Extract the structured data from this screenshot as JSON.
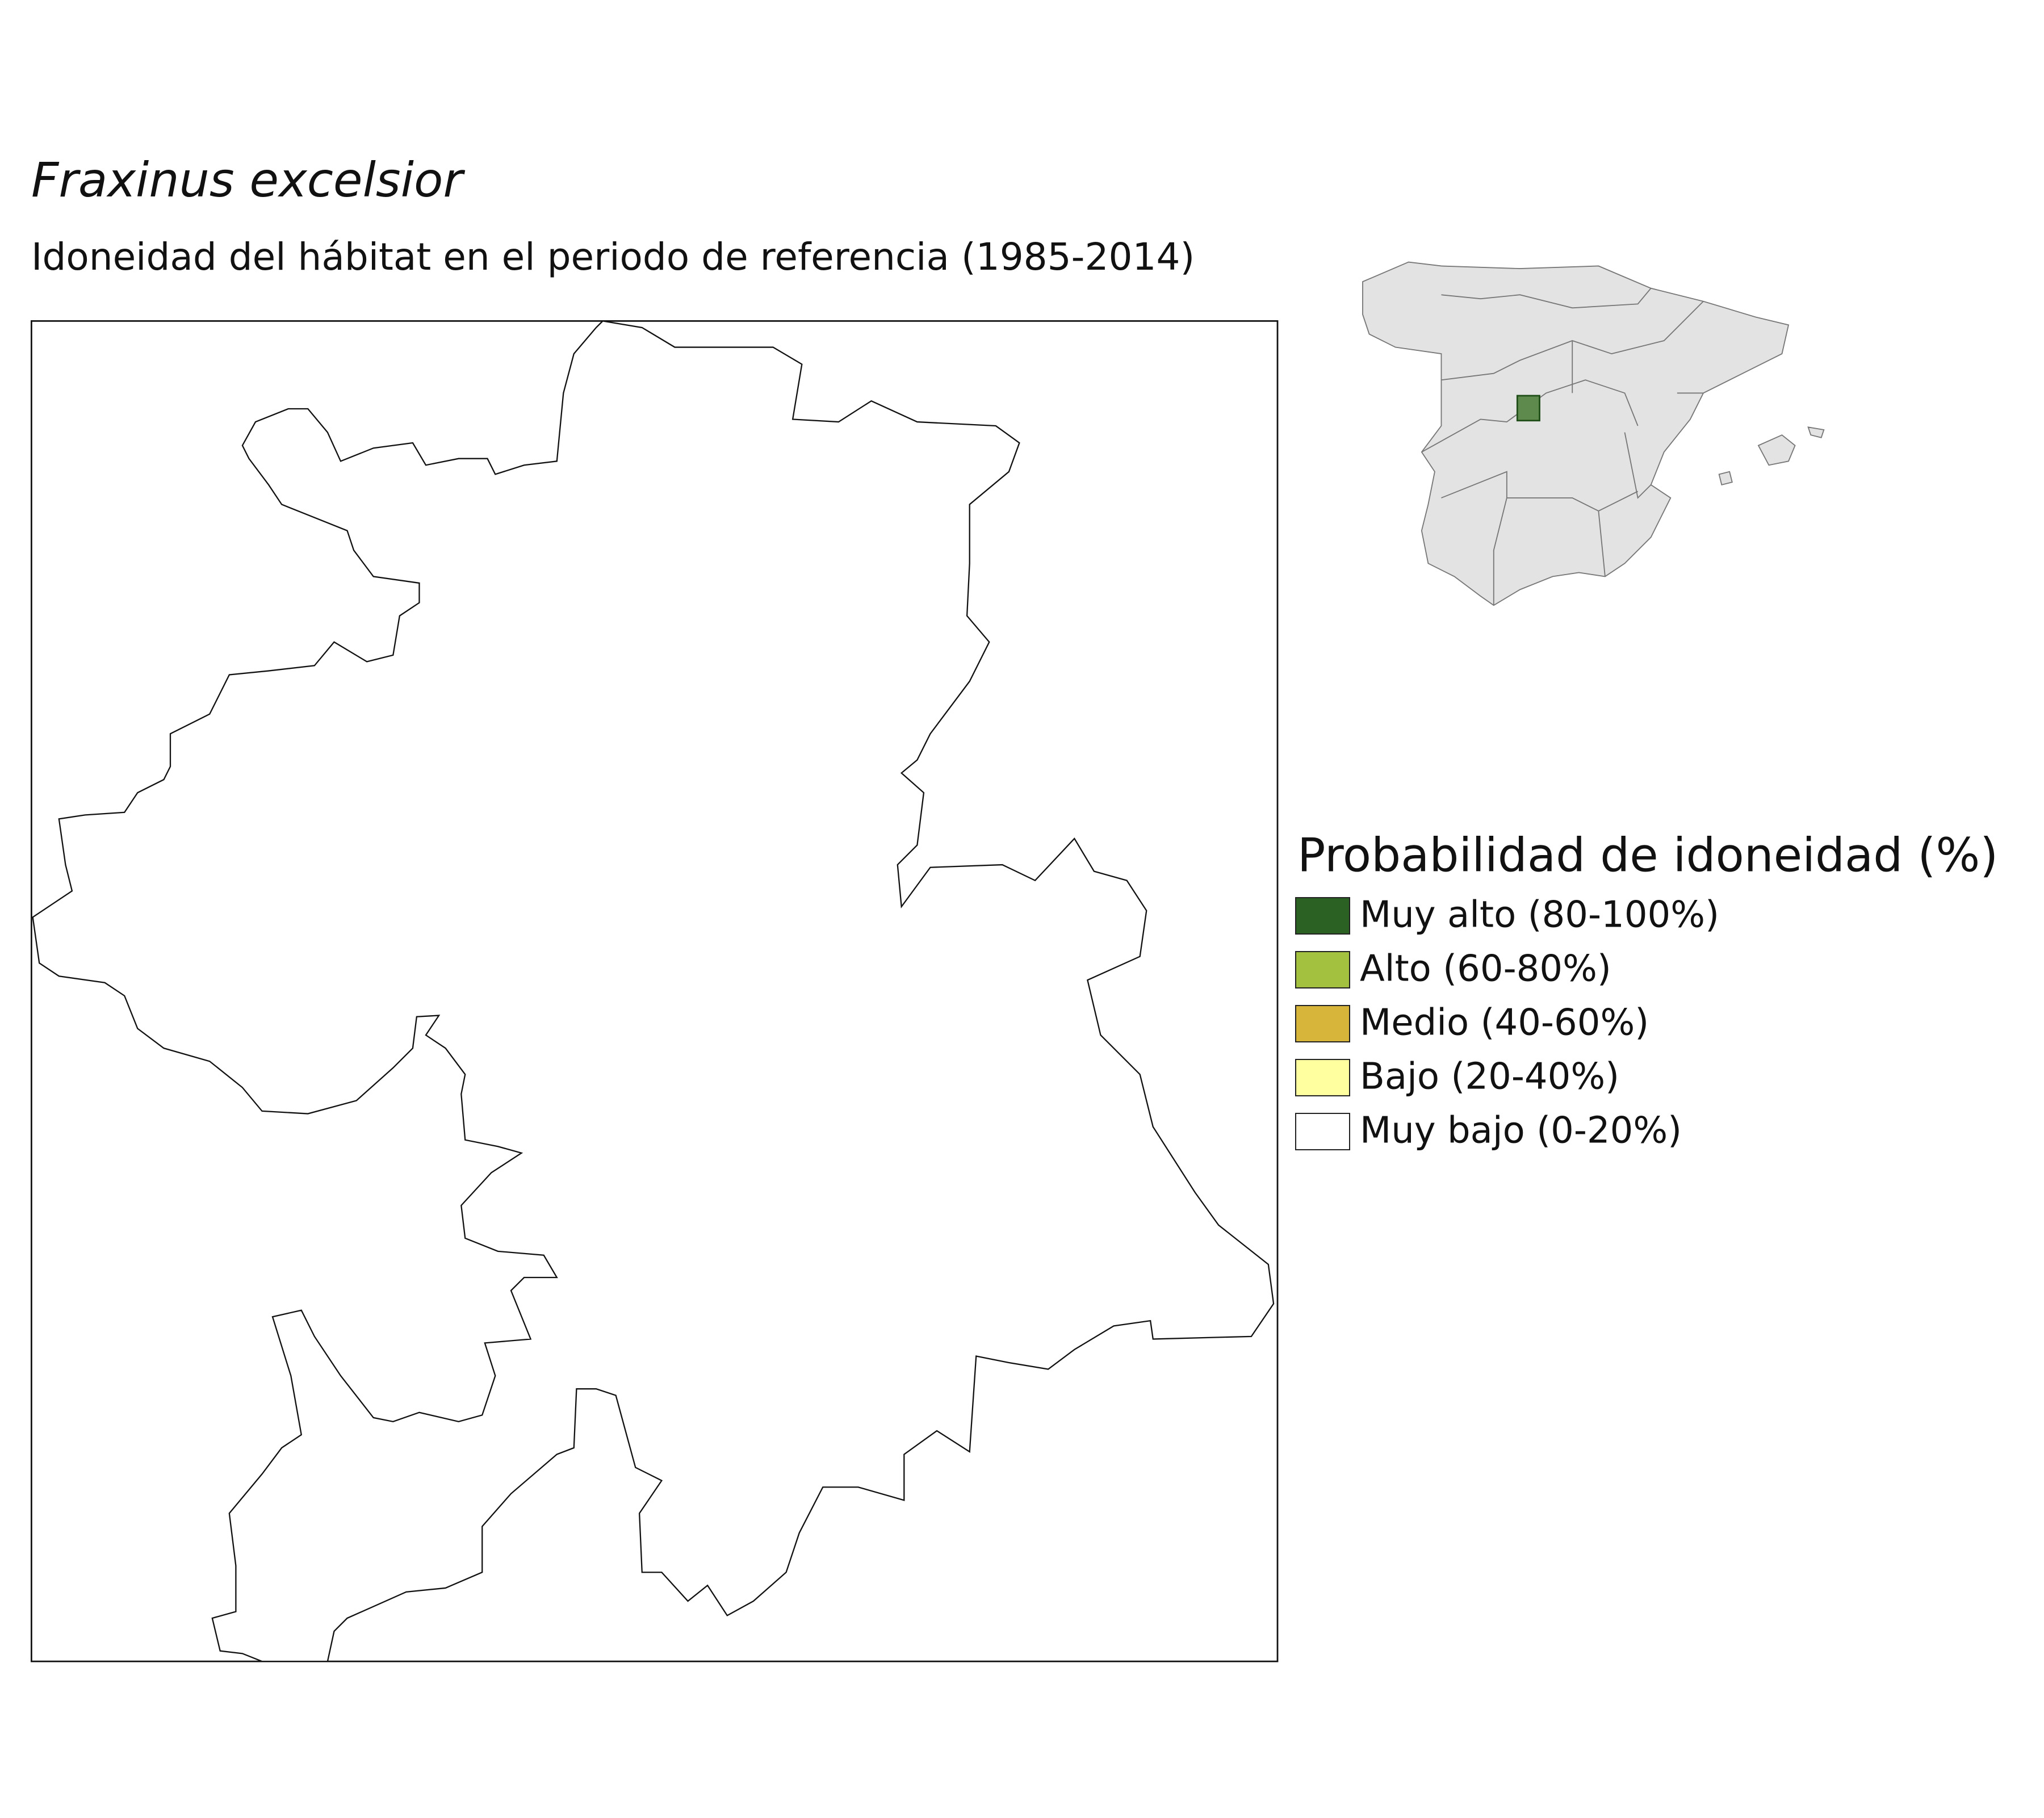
{
  "header": {
    "title": "Fraxinus excelsior",
    "subtitle": "Idoneidad del hábitat en el periodo de referencia (1985-2014)"
  },
  "legend": {
    "title": "Probabilidad de idoneidad (%)",
    "items": [
      {
        "label": "Muy alto (80-100%)",
        "color": "#2b6122"
      },
      {
        "label": "Alto (60-80%)",
        "color": "#a3c13f"
      },
      {
        "label": "Medio (40-60%)",
        "color": "#d7b53a"
      },
      {
        "label": "Bajo (20-40%)",
        "color": "#ffffa0"
      },
      {
        "label": "Muy bajo (0-20%)",
        "color": "#ffffff"
      }
    ]
  }
}
